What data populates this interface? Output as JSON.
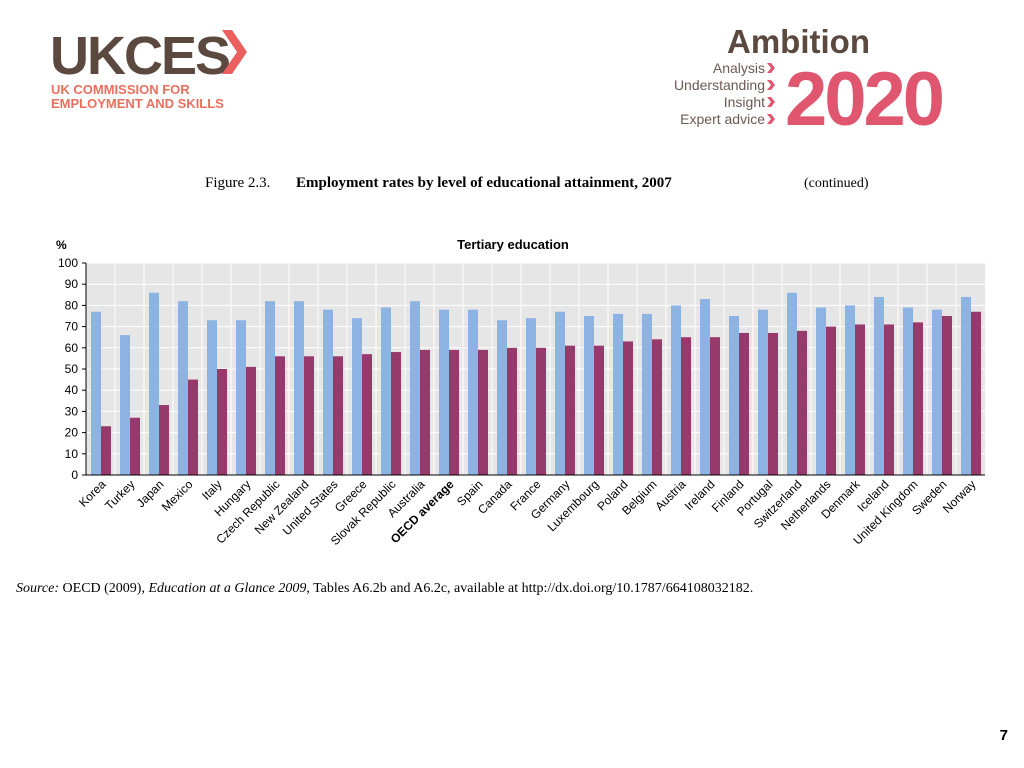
{
  "logo": {
    "name": "UKCES",
    "line1": "UK COMMISSION FOR",
    "line2": "EMPLOYMENT AND SKILLS"
  },
  "ambition": {
    "title": "Ambition",
    "items": [
      "Analysis",
      "Understanding",
      "Insight",
      "Expert advice"
    ],
    "year": "2020"
  },
  "figure": {
    "number": "Figure 2.3.",
    "title": "Employment rates by level of educational attainment, 2007",
    "note": "(continued)"
  },
  "chart_data": {
    "type": "bar",
    "title": "Tertiary education",
    "y_label": "%",
    "categories": [
      "Korea",
      "Turkey",
      "Japan",
      "Mexico",
      "Italy",
      "Hungary",
      "Czech Republic",
      "New Zealand",
      "United States",
      "Greece",
      "Slovak Republic",
      "Australia",
      "OECD average",
      "Spain",
      "Canada",
      "France",
      "Germany",
      "Luxembourg",
      "Poland",
      "Belgium",
      "Austria",
      "Ireland",
      "Finland",
      "Portugal",
      "Switzerland",
      "Netherlands",
      "Denmark",
      "Iceland",
      "United Kingdom",
      "Sweden",
      "Norway"
    ],
    "series": [
      {
        "color": "#8db3e2",
        "values": [
          77,
          66,
          86,
          82,
          73,
          73,
          82,
          82,
          78,
          74,
          79,
          82,
          78,
          78,
          73,
          74,
          77,
          75,
          76,
          76,
          80,
          83,
          75,
          78,
          86,
          79,
          80,
          84,
          79,
          78,
          84
        ]
      },
      {
        "color": "#953a6a",
        "values": [
          23,
          27,
          33,
          45,
          50,
          51,
          56,
          56,
          56,
          57,
          58,
          59,
          59,
          59,
          60,
          60,
          61,
          61,
          63,
          64,
          65,
          65,
          67,
          67,
          68,
          70,
          71,
          71,
          72,
          75,
          77
        ]
      }
    ],
    "ylim": [
      0,
      100
    ],
    "yticks": [
      0,
      10,
      20,
      30,
      40,
      50,
      60,
      70,
      80,
      90,
      100
    ],
    "grid": true
  },
  "source": {
    "label": "Source:",
    "text1": "OECD (2009),",
    "italic": "Education at a Glance 2009",
    "text2": ", Tables A6.2b and A6.2c, available at http://dx.doi.org/10.1787/664108032182."
  },
  "page_number": "7"
}
